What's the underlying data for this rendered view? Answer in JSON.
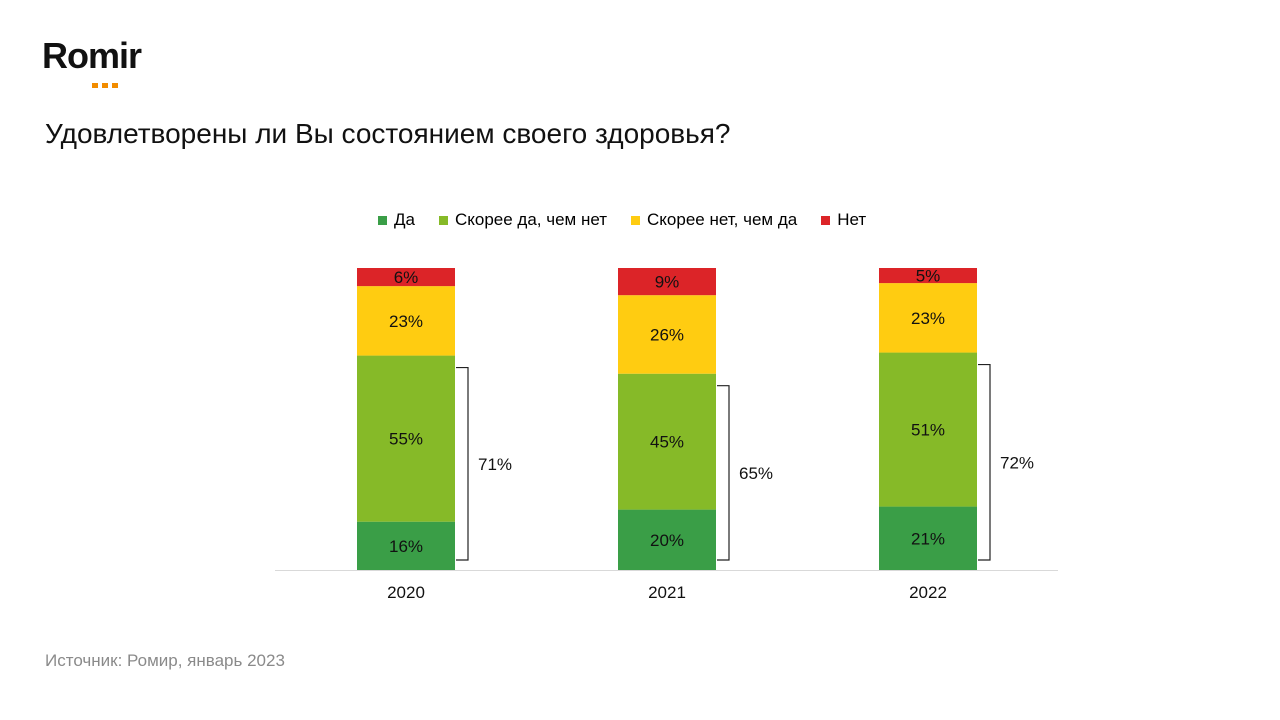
{
  "logo": {
    "text": "Romir"
  },
  "title": "Удовлетворены ли Вы состоянием своего здоровья?",
  "source": "Источник: Ромир, январь 2023",
  "colors": {
    "yes": "#3a9e47",
    "rather_yes": "#86ba28",
    "rather_no": "#ffcc11",
    "no": "#dc2428",
    "logo_accent": "#f28c00"
  },
  "chart_data": {
    "type": "bar",
    "stacked": true,
    "categories": [
      "2020",
      "2021",
      "2022"
    ],
    "series": [
      {
        "name": "Да",
        "values": [
          16,
          20,
          21
        ],
        "color": "#3a9e47"
      },
      {
        "name": "Скорее да, чем нет",
        "values": [
          55,
          45,
          51
        ],
        "color": "#86ba28"
      },
      {
        "name": "Скорее нет, чем да",
        "values": [
          23,
          26,
          23
        ],
        "color": "#ffcc11"
      },
      {
        "name": "Нет",
        "values": [
          6,
          9,
          5
        ],
        "color": "#dc2428"
      }
    ],
    "value_labels": [
      [
        "16%",
        "20%",
        "21%"
      ],
      [
        "55%",
        "45%",
        "51%"
      ],
      [
        "23%",
        "26%",
        "23%"
      ],
      [
        "6%",
        "9%",
        "5%"
      ]
    ],
    "bracket_totals": [
      "71%",
      "65%",
      "72%"
    ],
    "legend_position": "top",
    "grid": false,
    "ylim": [
      0,
      100
    ]
  }
}
